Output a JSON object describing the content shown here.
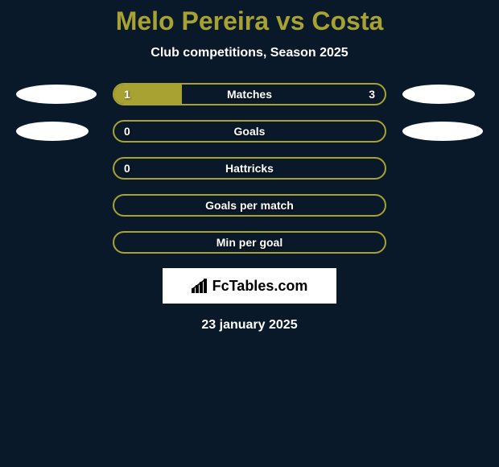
{
  "title": "Melo Pereira vs Costa",
  "subtitle": "Club competitions, Season 2025",
  "background_color": "#0a1929",
  "accent_color": "#a8a232",
  "text_color": "#ffffff",
  "stats": [
    {
      "label": "Matches",
      "left_value": "1",
      "right_value": "3",
      "left_fill_pct": 25,
      "show_left_avatar": true,
      "show_right_avatar": true,
      "avatar_left_width": 100,
      "avatar_right_width": 90
    },
    {
      "label": "Goals",
      "left_value": "0",
      "right_value": "",
      "left_fill_pct": 0,
      "show_left_avatar": true,
      "show_right_avatar": true,
      "avatar_left_width": 90,
      "avatar_right_width": 100
    },
    {
      "label": "Hattricks",
      "left_value": "0",
      "right_value": "",
      "left_fill_pct": 0,
      "show_left_avatar": false,
      "show_right_avatar": false
    },
    {
      "label": "Goals per match",
      "left_value": "",
      "right_value": "",
      "left_fill_pct": 0,
      "show_left_avatar": false,
      "show_right_avatar": false
    },
    {
      "label": "Min per goal",
      "left_value": "",
      "right_value": "",
      "left_fill_pct": 0,
      "show_left_avatar": false,
      "show_right_avatar": false
    }
  ],
  "logo_text": "FcTables.com",
  "date_text": "23 january 2025",
  "bar_border_color": "#a8a232",
  "bar_fill_color": "#a8a232",
  "title_fontsize": 32,
  "subtitle_fontsize": 16,
  "label_fontsize": 14
}
